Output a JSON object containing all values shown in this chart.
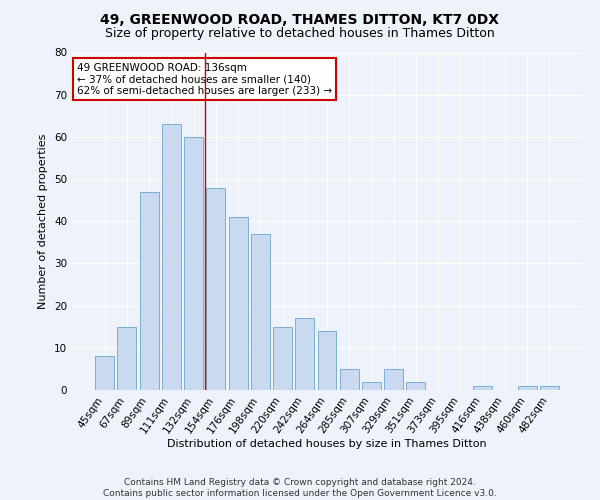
{
  "title": "49, GREENWOOD ROAD, THAMES DITTON, KT7 0DX",
  "subtitle": "Size of property relative to detached houses in Thames Ditton",
  "xlabel": "Distribution of detached houses by size in Thames Ditton",
  "ylabel": "Number of detached properties",
  "bar_labels": [
    "45sqm",
    "67sqm",
    "89sqm",
    "111sqm",
    "132sqm",
    "154sqm",
    "176sqm",
    "198sqm",
    "220sqm",
    "242sqm",
    "264sqm",
    "285sqm",
    "307sqm",
    "329sqm",
    "351sqm",
    "373sqm",
    "395sqm",
    "416sqm",
    "438sqm",
    "460sqm",
    "482sqm"
  ],
  "bar_values": [
    8,
    15,
    47,
    63,
    60,
    48,
    41,
    37,
    15,
    17,
    14,
    5,
    2,
    5,
    2,
    0,
    0,
    1,
    0,
    1,
    1
  ],
  "bar_color": "#c9d9f0",
  "bar_edgecolor": "#7bafd4",
  "vline_x": 4.5,
  "vline_color": "#cc0000",
  "annotation_text": "49 GREENWOOD ROAD: 136sqm\n← 37% of detached houses are smaller (140)\n62% of semi-detached houses are larger (233) →",
  "annotation_box_facecolor": "#ffffff",
  "annotation_box_edgecolor": "#cc0000",
  "ylim": [
    0,
    80
  ],
  "yticks": [
    0,
    10,
    20,
    30,
    40,
    50,
    60,
    70,
    80
  ],
  "footer": "Contains HM Land Registry data © Crown copyright and database right 2024.\nContains public sector information licensed under the Open Government Licence v3.0.",
  "bg_color": "#eef2fa",
  "grid_color": "#ffffff",
  "title_fontsize": 10,
  "subtitle_fontsize": 9,
  "axis_label_fontsize": 8,
  "tick_fontsize": 7.5,
  "footer_fontsize": 6.5,
  "annot_fontsize": 7.5
}
